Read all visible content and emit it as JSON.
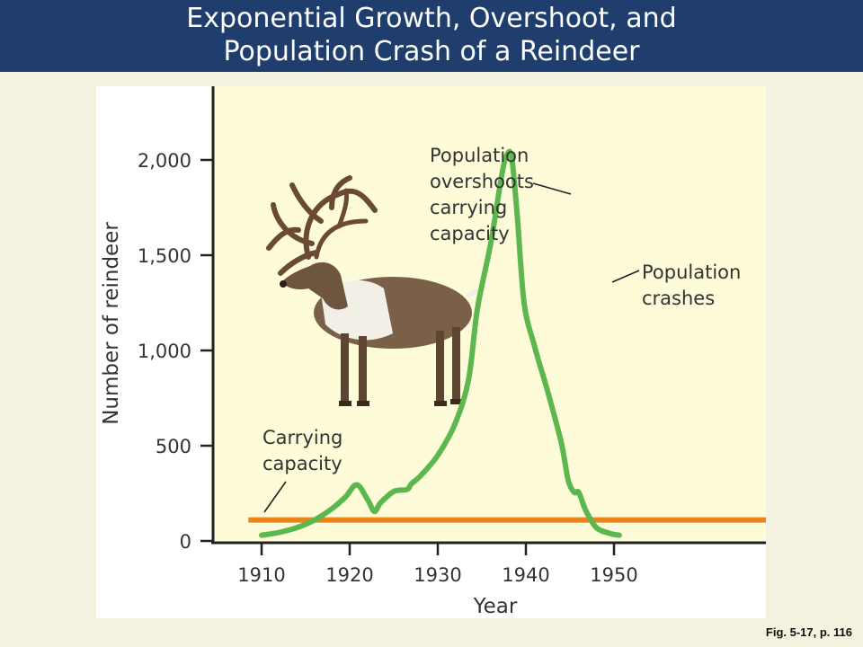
{
  "header": {
    "title_line1": "Exponential Growth, Overshoot, and",
    "title_line2": "Population Crash of a Reindeer"
  },
  "caption": "Fig. 5-17, p. 116",
  "colors": {
    "header_bg": "#1f3e6e",
    "plot_bg": "#fefbd8",
    "population_line": "#5cb84e",
    "capacity_line": "#e8861c"
  },
  "chart_data": {
    "type": "line",
    "title": "",
    "xlabel": "Year",
    "ylabel": "Number of reindeer",
    "xlim": [
      1906,
      1953
    ],
    "ylim": [
      0,
      2350
    ],
    "x_ticks": [
      1910,
      1920,
      1930,
      1940,
      1950
    ],
    "x_tick_labels": [
      "1910",
      "1920",
      "1930",
      "1940",
      "1950"
    ],
    "y_ticks": [
      0,
      500,
      1000,
      1500,
      2000
    ],
    "y_tick_labels": [
      "0",
      "500",
      "1,000",
      "1,500",
      "2,000"
    ],
    "grid": false,
    "carrying_capacity": 110,
    "series": [
      {
        "kind": "population",
        "x": [
          1910,
          1912,
          1914,
          1916,
          1918,
          1919.5,
          1920.8,
          1922,
          1922.8,
          1923.5,
          1925,
          1926.5,
          1927,
          1928,
          1930,
          1932,
          1933.5,
          1934.5,
          1936,
          1937.3,
          1937.9,
          1938.4,
          1939,
          1939.8,
          1941,
          1942.5,
          1944,
          1944.8,
          1945.5,
          1946,
          1946.8,
          1948,
          1949.5,
          1950.6
        ],
        "y": [
          30,
          45,
          70,
          110,
          170,
          230,
          295,
          220,
          155,
          200,
          260,
          270,
          300,
          340,
          450,
          620,
          850,
          1220,
          1560,
          1930,
          2030,
          2010,
          1720,
          1250,
          1020,
          780,
          520,
          320,
          255,
          255,
          160,
          70,
          40,
          30
        ]
      }
    ],
    "annotations": [
      {
        "lines": [
          "Population",
          "overshoots",
          "carrying",
          "capacity"
        ],
        "points_to": {
          "x": 1935.6,
          "y": 1840
        }
      },
      {
        "lines": [
          "Population",
          "crashes"
        ],
        "points_to": {
          "x": 1939.8,
          "y": 1380
        }
      },
      {
        "lines": [
          "Carrying",
          "capacity"
        ],
        "points_to": {
          "x": 1910.5,
          "y": 150
        }
      }
    ]
  }
}
